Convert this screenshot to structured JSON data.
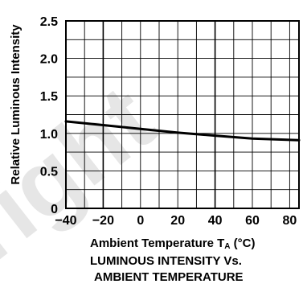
{
  "chart_data": {
    "type": "line",
    "title": "LUMINOUS  INTENSITY  Vs.",
    "subtitle": "AMBIENT  TEMPERATURE",
    "xlabel": "Ambient  Temperature  T",
    "xlabel_sub": "A",
    "xlabel_unit": " (°C)",
    "ylabel": "Relative  Luminous  Intensity",
    "xlim": [
      -40,
      85
    ],
    "ylim": [
      0,
      2.5
    ],
    "x_ticks": [
      -40,
      -20,
      0,
      20,
      40,
      60,
      80
    ],
    "x_tick_labels": [
      "−40",
      "−20",
      "0",
      "20",
      "40",
      "60",
      "80"
    ],
    "y_ticks": [
      0,
      0.5,
      1.0,
      1.5,
      2.0,
      2.5
    ],
    "y_tick_labels": [
      "0",
      "0.5",
      "1.0",
      "1.5",
      "2.0",
      "2.5"
    ],
    "grid": true,
    "series": [
      {
        "x": [
          -40,
          -20,
          0,
          20,
          40,
          60,
          85
        ],
        "y": [
          1.16,
          1.11,
          1.06,
          1.01,
          0.97,
          0.93,
          0.91
        ]
      }
    ],
    "watermark": "right",
    "colors": {
      "line": "#000000",
      "grid": "#000000",
      "watermark": "#e6e6e6"
    }
  }
}
